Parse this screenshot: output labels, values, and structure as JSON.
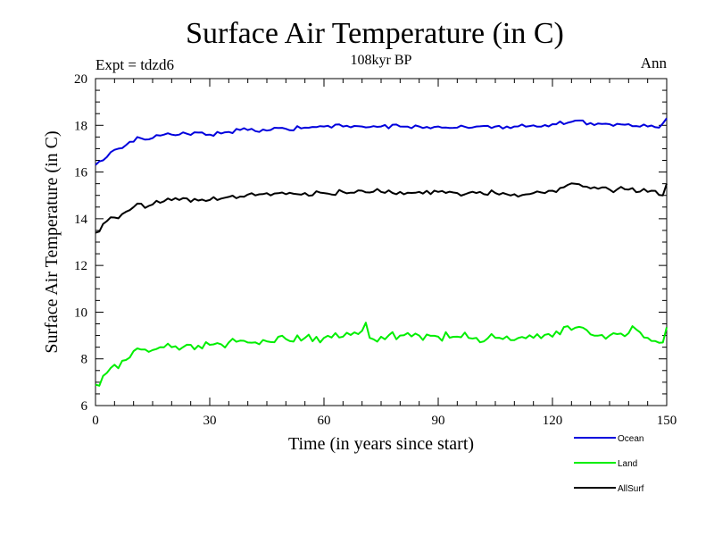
{
  "chart_data": {
    "type": "line",
    "title": "Surface Air Temperature (in C)",
    "subtitle": "108kyr BP",
    "left_annotation": "Expt = tdzd6",
    "right_annotation": "Ann",
    "xlabel": "Time (in years since start)",
    "ylabel": "Surface Air Temperature (in C)",
    "xlim": [
      0,
      150
    ],
    "ylim": [
      6,
      20
    ],
    "x_ticks": [
      0,
      30,
      60,
      90,
      120,
      150
    ],
    "y_ticks": [
      6,
      8,
      10,
      12,
      14,
      16,
      18,
      20
    ],
    "x_tick_labels": [
      "0",
      "30",
      "60",
      "90",
      "120",
      "150"
    ],
    "y_tick_labels": [
      "6",
      "8",
      "10",
      "12",
      "14",
      "16",
      "18",
      "20"
    ],
    "x_minor_step": 5,
    "y_minor_step": 0.5,
    "grid": false,
    "legend_position": "bottom-right",
    "series": [
      {
        "name": "Ocean",
        "color": "#0000dd",
        "anchors": [
          [
            0,
            16.3
          ],
          [
            2,
            16.5
          ],
          [
            4,
            16.85
          ],
          [
            6,
            17.0
          ],
          [
            8,
            17.15
          ],
          [
            10,
            17.3
          ],
          [
            11,
            17.5
          ],
          [
            14,
            17.4
          ],
          [
            18,
            17.6
          ],
          [
            22,
            17.6
          ],
          [
            26,
            17.7
          ],
          [
            30,
            17.6
          ],
          [
            34,
            17.7
          ],
          [
            38,
            17.8
          ],
          [
            42,
            17.75
          ],
          [
            46,
            17.8
          ],
          [
            50,
            17.85
          ],
          [
            55,
            17.9
          ],
          [
            60,
            17.95
          ],
          [
            65,
            17.95
          ],
          [
            70,
            17.95
          ],
          [
            75,
            17.95
          ],
          [
            80,
            17.95
          ],
          [
            85,
            17.95
          ],
          [
            90,
            17.95
          ],
          [
            95,
            17.9
          ],
          [
            100,
            17.95
          ],
          [
            105,
            17.95
          ],
          [
            110,
            17.95
          ],
          [
            115,
            18.0
          ],
          [
            120,
            18.05
          ],
          [
            125,
            18.15
          ],
          [
            130,
            18.1
          ],
          [
            135,
            18.05
          ],
          [
            140,
            18.05
          ],
          [
            145,
            17.95
          ],
          [
            148,
            17.9
          ],
          [
            150,
            18.3
          ]
        ],
        "noise": 0.09
      },
      {
        "name": "Land",
        "color": "#00ee00",
        "anchors": [
          [
            0,
            6.9
          ],
          [
            1,
            6.85
          ],
          [
            3,
            7.4
          ],
          [
            5,
            7.75
          ],
          [
            6,
            7.6
          ],
          [
            8,
            7.95
          ],
          [
            11,
            8.45
          ],
          [
            14,
            8.3
          ],
          [
            17,
            8.5
          ],
          [
            20,
            8.5
          ],
          [
            25,
            8.6
          ],
          [
            30,
            8.6
          ],
          [
            35,
            8.7
          ],
          [
            40,
            8.7
          ],
          [
            45,
            8.75
          ],
          [
            50,
            8.85
          ],
          [
            55,
            8.9
          ],
          [
            60,
            8.9
          ],
          [
            65,
            8.95
          ],
          [
            70,
            9.2
          ],
          [
            71,
            9.55
          ],
          [
            72,
            8.9
          ],
          [
            75,
            8.95
          ],
          [
            80,
            9.0
          ],
          [
            85,
            9.0
          ],
          [
            90,
            8.95
          ],
          [
            95,
            8.95
          ],
          [
            100,
            8.9
          ],
          [
            105,
            8.9
          ],
          [
            110,
            8.8
          ],
          [
            115,
            8.9
          ],
          [
            120,
            8.95
          ],
          [
            124,
            9.4
          ],
          [
            130,
            9.05
          ],
          [
            135,
            9.0
          ],
          [
            140,
            9.1
          ],
          [
            141,
            9.4
          ],
          [
            145,
            8.9
          ],
          [
            149,
            8.7
          ],
          [
            150,
            9.35
          ]
        ],
        "noise": 0.2
      },
      {
        "name": "AllSurf",
        "color": "#000000",
        "anchors": [
          [
            0,
            13.4
          ],
          [
            1,
            13.45
          ],
          [
            3,
            13.9
          ],
          [
            5,
            14.05
          ],
          [
            7,
            14.2
          ],
          [
            10,
            14.5
          ],
          [
            11,
            14.65
          ],
          [
            14,
            14.55
          ],
          [
            18,
            14.75
          ],
          [
            22,
            14.8
          ],
          [
            26,
            14.85
          ],
          [
            30,
            14.8
          ],
          [
            34,
            14.9
          ],
          [
            38,
            14.95
          ],
          [
            42,
            15.0
          ],
          [
            46,
            15.0
          ],
          [
            50,
            15.05
          ],
          [
            55,
            15.1
          ],
          [
            60,
            15.1
          ],
          [
            65,
            15.15
          ],
          [
            70,
            15.2
          ],
          [
            75,
            15.15
          ],
          [
            80,
            15.15
          ],
          [
            85,
            15.15
          ],
          [
            90,
            15.15
          ],
          [
            95,
            15.1
          ],
          [
            100,
            15.1
          ],
          [
            105,
            15.1
          ],
          [
            110,
            15.05
          ],
          [
            115,
            15.1
          ],
          [
            120,
            15.2
          ],
          [
            124,
            15.45
          ],
          [
            130,
            15.3
          ],
          [
            135,
            15.25
          ],
          [
            140,
            15.25
          ],
          [
            145,
            15.15
          ],
          [
            149,
            15.0
          ],
          [
            150,
            15.5
          ]
        ],
        "noise": 0.12
      }
    ]
  }
}
